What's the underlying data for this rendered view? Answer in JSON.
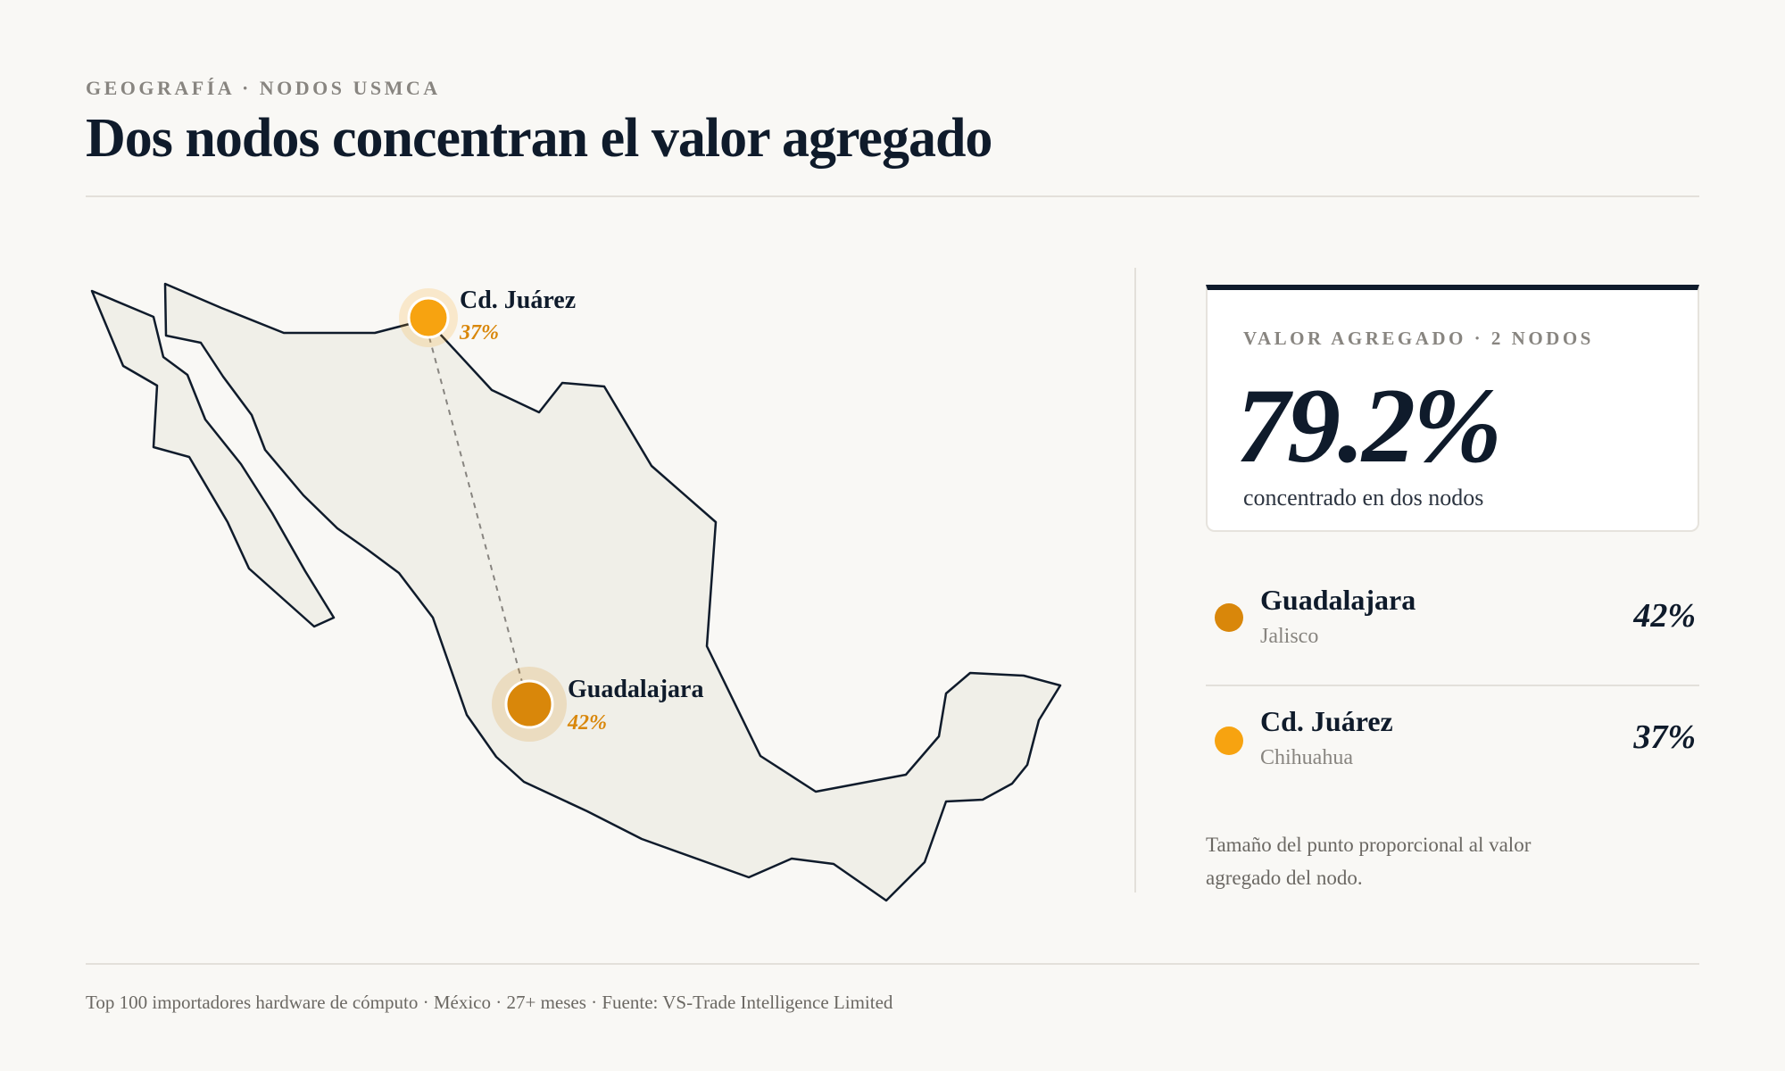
{
  "header": {
    "kicker": "GEOGRAFÍA · NODOS USMCA",
    "title": "Dos nodos concentran el valor agregado"
  },
  "map": {
    "nodes": [
      {
        "city": "Cd. Juárez",
        "pct_label": "37%",
        "share": 37,
        "color": "#f7a310"
      },
      {
        "city": "Guadalajara",
        "pct_label": "42%",
        "share": 42,
        "color": "#d9870a"
      }
    ]
  },
  "summary_card": {
    "kicker": "VALOR AGREGADO · 2 NODOS",
    "value": "79.2%",
    "caption": "concentrado en dos nodos"
  },
  "node_list": [
    {
      "city": "Guadalajara",
      "state": "Jalisco",
      "pct": "42%",
      "color": "#d9870a"
    },
    {
      "city": "Cd. Juárez",
      "state": "Chihuahua",
      "pct": "37%",
      "color": "#f7a310"
    }
  ],
  "note": "Tamaño del punto proporcional al valor agregado del nodo.",
  "footer": "Top 100 importadores hardware de cómputo · México · 27+ meses · Fuente: VS-Trade Intelligence Limited",
  "colors": {
    "background": "#f9f8f5",
    "ink": "#0f1b2b",
    "land": "#f0efe8",
    "accent_dark": "#d9870a",
    "accent_light": "#f7a310"
  }
}
